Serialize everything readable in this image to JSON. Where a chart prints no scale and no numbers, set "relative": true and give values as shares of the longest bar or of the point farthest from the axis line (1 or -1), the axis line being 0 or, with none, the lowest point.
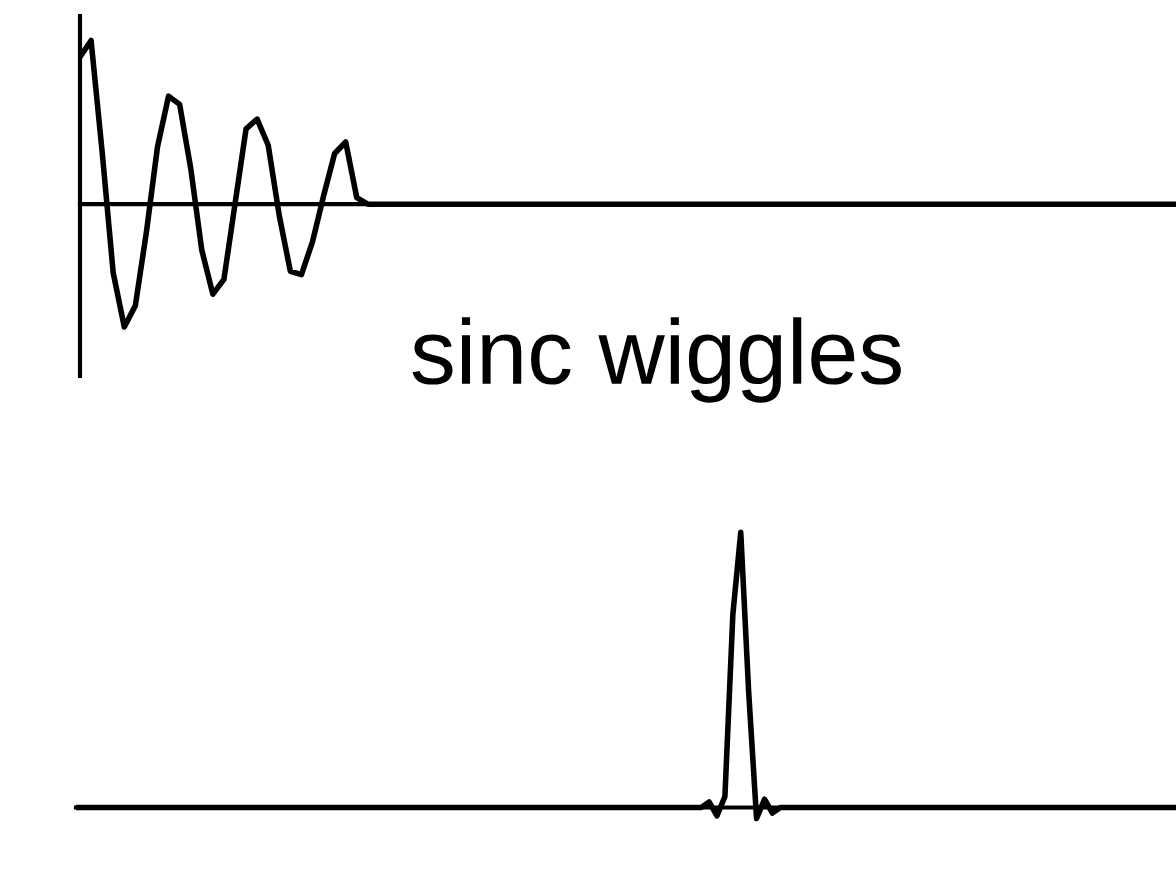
{
  "chart_data": [
    {
      "type": "line",
      "relative": true,
      "annotations": [
        "sinc wiggles"
      ],
      "categories": [
        null,
        null,
        null,
        null,
        null,
        null,
        null,
        null,
        null,
        null,
        null,
        null,
        null,
        null,
        null,
        null,
        null,
        null,
        null,
        null,
        null,
        null,
        null,
        null,
        null,
        null,
        null,
        null,
        null,
        null,
        null,
        null,
        null,
        null,
        null,
        null,
        null,
        null,
        null,
        null,
        null,
        null,
        null,
        null,
        null,
        null,
        null,
        null,
        null,
        null,
        null,
        null,
        null,
        null,
        null,
        null,
        null,
        null,
        null,
        null,
        null,
        null,
        null,
        null,
        null,
        null,
        null,
        null,
        null,
        null,
        null,
        null,
        null,
        null,
        null,
        null,
        null,
        null,
        null,
        null,
        null,
        null,
        null,
        null,
        null,
        null,
        null,
        null,
        null,
        null,
        null,
        null,
        null,
        null,
        null,
        null,
        null,
        null,
        null,
        null
      ],
      "series": [
        {
          "color": "#000000",
          "values": [
            0.9,
            1,
            0.32,
            -0.42,
            -0.75,
            -0.62,
            -0.17,
            0.35,
            0.66,
            0.61,
            0.22,
            -0.28,
            -0.55,
            -0.46,
            0,
            0.46,
            0.52,
            0.36,
            -0.07,
            -0.41,
            -0.43,
            -0.23,
            0.05,
            0.31,
            0.38,
            0.04,
            0,
            0,
            0,
            0,
            0,
            0,
            0,
            0,
            0,
            0,
            0,
            0,
            0,
            0,
            0,
            0,
            0,
            0,
            0,
            0,
            0,
            0,
            0,
            0,
            0,
            0,
            0,
            0,
            0,
            0,
            0,
            0,
            0,
            0,
            0,
            0,
            0,
            0,
            0,
            0,
            0,
            0,
            0,
            0,
            0,
            0,
            0,
            0,
            0,
            0,
            0,
            0,
            0,
            0,
            0,
            0,
            0,
            0,
            0,
            0,
            0,
            0,
            0,
            0,
            0,
            0,
            0,
            0,
            0,
            0,
            0,
            0,
            0,
            0
          ]
        }
      ]
    },
    {
      "type": "line",
      "relative": true,
      "categories": [
        null,
        null,
        null,
        null,
        null,
        null,
        null,
        null,
        null,
        null,
        null,
        null,
        null,
        null,
        null,
        null,
        null,
        null,
        null,
        null,
        null,
        null,
        null,
        null,
        null,
        null,
        null,
        null,
        null,
        null,
        null,
        null,
        null,
        null,
        null,
        null,
        null,
        null,
        null,
        null,
        null,
        null,
        null,
        null,
        null,
        null,
        null,
        null,
        null,
        null,
        null,
        null,
        null,
        null,
        null,
        null,
        null,
        null,
        null,
        null,
        null,
        null,
        null,
        null,
        null,
        null,
        null,
        null,
        null,
        null,
        null,
        null,
        null,
        null,
        null,
        null,
        null,
        null,
        null,
        null,
        null,
        null,
        null,
        null,
        null,
        null,
        null,
        null,
        null,
        null,
        null,
        null,
        null,
        null,
        null,
        null,
        null,
        null,
        null,
        null,
        null,
        null,
        null,
        null,
        null,
        null,
        null,
        null,
        null,
        null,
        null,
        null,
        null,
        null,
        null,
        null,
        null,
        null,
        null,
        null,
        null,
        null,
        null,
        null,
        null,
        null,
        null,
        null,
        null,
        null,
        null,
        null,
        null,
        null,
        null,
        null,
        null,
        null,
        null,
        null
      ],
      "series": [
        {
          "color": "#000000",
          "values": [
            0,
            0,
            0,
            0,
            0,
            0,
            0,
            0,
            0,
            0,
            0,
            0,
            0,
            0,
            0,
            0,
            0,
            0,
            0,
            0,
            0,
            0,
            0,
            0,
            0,
            0,
            0,
            0,
            0,
            0,
            0,
            0,
            0,
            0,
            0,
            0,
            0,
            0,
            0,
            0,
            0,
            0,
            0,
            0,
            0,
            0,
            0,
            0,
            0,
            0,
            0,
            0,
            0,
            0,
            0,
            0,
            0,
            0,
            0,
            0,
            0,
            0,
            0,
            0,
            0,
            0,
            0,
            0,
            0,
            0,
            0,
            0,
            0,
            0,
            0,
            0,
            0,
            0,
            0,
            0,
            0.02,
            -0.03,
            0.04,
            0.7,
            1,
            0.42,
            -0.04,
            0.03,
            -0.02,
            0,
            0,
            0,
            0,
            0,
            0,
            0,
            0,
            0,
            0,
            0,
            0,
            0,
            0,
            0,
            0,
            0,
            0,
            0,
            0,
            0,
            0,
            0,
            0,
            0,
            0,
            0,
            0,
            0,
            0,
            0,
            0,
            0,
            0,
            0,
            0,
            0,
            0,
            0,
            0,
            0,
            0,
            0,
            0,
            0,
            0,
            0,
            0,
            0,
            0,
            0
          ]
        }
      ]
    }
  ]
}
